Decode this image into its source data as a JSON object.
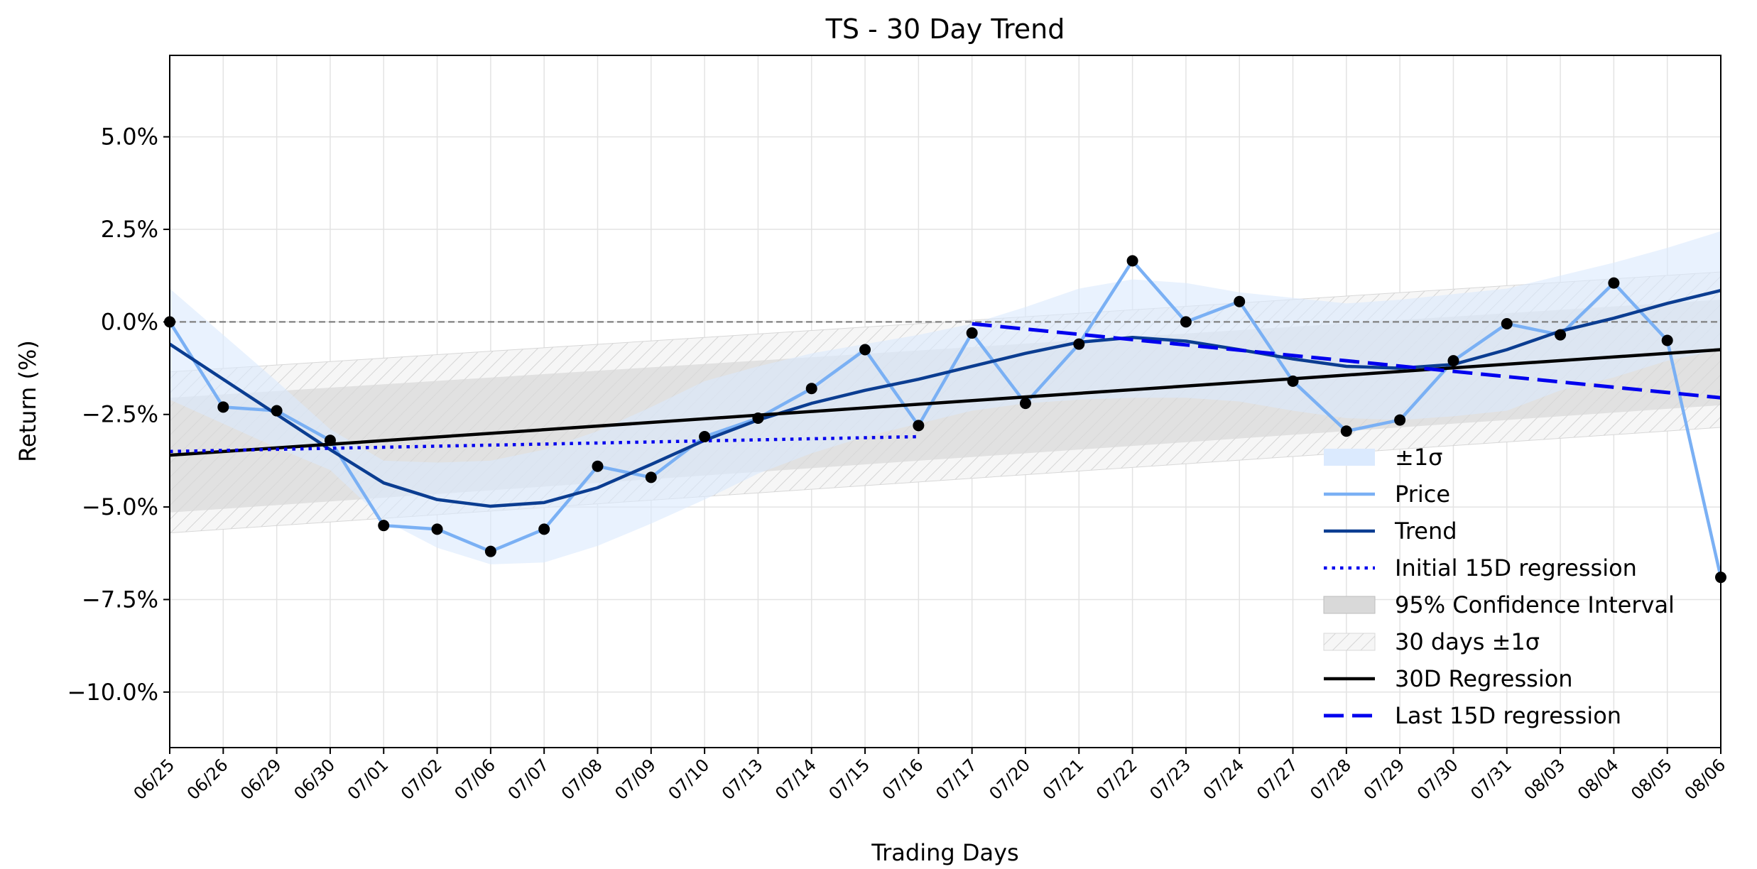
{
  "chart_data": {
    "type": "line",
    "title": "TS - 30 Day Trend",
    "xlabel": "Trading Days",
    "ylabel": "Return (%)",
    "ylim": [
      -11.5,
      7.2
    ],
    "y_ticks": [
      5.0,
      2.5,
      0.0,
      -2.5,
      -5.0,
      -7.5,
      -10.0
    ],
    "y_tick_labels": [
      "5.0%",
      "2.5%",
      "0.0%",
      "−2.5%",
      "−5.0%",
      "−7.5%",
      "−10.0%"
    ],
    "grid": true,
    "legend_position": "lower-right",
    "categories": [
      "06/25",
      "06/26",
      "06/29",
      "06/30",
      "07/01",
      "07/02",
      "07/06",
      "07/07",
      "07/08",
      "07/09",
      "07/10",
      "07/13",
      "07/14",
      "07/15",
      "07/16",
      "07/17",
      "07/20",
      "07/21",
      "07/22",
      "07/23",
      "07/24",
      "07/27",
      "07/28",
      "07/29",
      "07/30",
      "07/31",
      "08/03",
      "08/04",
      "08/05",
      "08/06"
    ],
    "series": [
      {
        "name": "Price",
        "kind": "line",
        "color": "#7ab0f4",
        "values": [
          0.0,
          -2.3,
          -2.4,
          -3.2,
          -5.5,
          -5.6,
          -6.2,
          -5.6,
          -3.9,
          -4.2,
          -3.1,
          -2.6,
          -1.8,
          -0.75,
          -2.8,
          -0.3,
          -2.2,
          -0.6,
          1.65,
          0.0,
          0.55,
          -1.6,
          -2.95,
          -2.65,
          -1.05,
          -0.05,
          -0.35,
          1.05,
          -0.5,
          -6.9
        ]
      },
      {
        "name": "Trend",
        "kind": "line",
        "color": "#0b3d91",
        "values": [
          -0.6,
          -1.55,
          -2.5,
          -3.45,
          -4.35,
          -4.8,
          -4.98,
          -4.88,
          -4.48,
          -3.85,
          -3.2,
          -2.65,
          -2.2,
          -1.85,
          -1.55,
          -1.2,
          -0.85,
          -0.55,
          -0.42,
          -0.52,
          -0.75,
          -1.0,
          -1.2,
          -1.25,
          -1.15,
          -0.75,
          -0.25,
          0.1,
          0.5,
          0.85
        ]
      },
      {
        "name": "Initial 15D regression",
        "kind": "dotted",
        "color": "#0000ee",
        "x_range": [
          0,
          14
        ],
        "y_range": [
          -3.5,
          -3.1
        ]
      },
      {
        "name": "30D Regression",
        "kind": "line",
        "color": "#000000",
        "x_range": [
          0,
          29
        ],
        "y_range": [
          -3.6,
          -0.75
        ]
      },
      {
        "name": "Last 15D regression",
        "kind": "dashed",
        "color": "#0000ee",
        "x_range": [
          15,
          29
        ],
        "y_range": [
          -0.05,
          -2.05
        ]
      },
      {
        "name": "±1σ",
        "kind": "band",
        "color": "#dbeafe",
        "upper": [
          0.9,
          -0.35,
          -1.6,
          -2.9,
          -3.75,
          -3.8,
          -3.75,
          -3.45,
          -2.95,
          -2.3,
          -1.6,
          -1.2,
          -0.85,
          -0.6,
          -0.35,
          -0.05,
          0.4,
          0.9,
          1.15,
          1.05,
          0.8,
          0.65,
          0.5,
          0.6,
          0.75,
          0.9,
          1.25,
          1.6,
          2.0,
          2.45
        ],
        "lower": [
          -2.1,
          -2.75,
          -3.4,
          -4.0,
          -5.35,
          -6.1,
          -6.55,
          -6.5,
          -6.05,
          -5.45,
          -4.8,
          -4.1,
          -3.55,
          -3.1,
          -2.75,
          -2.4,
          -2.2,
          -2.1,
          -2.05,
          -2.05,
          -2.15,
          -2.4,
          -2.6,
          -2.65,
          -2.55,
          -2.4,
          -1.85,
          -1.5,
          -1.05,
          -0.75
        ]
      },
      {
        "name": "95% Confidence Interval",
        "kind": "band",
        "color": "#d9d9d9",
        "upper_range": [
          -2.05,
          0.6
        ],
        "lower_range": [
          -5.15,
          -2.25
        ]
      },
      {
        "name": "30 days ±1σ",
        "kind": "hatched-band",
        "color": "#cccccc",
        "upper_range": [
          -1.35,
          1.35
        ],
        "lower_range": [
          -5.7,
          -2.85
        ]
      }
    ],
    "markers": {
      "color": "#000000",
      "values_from": "Price"
    },
    "zero_line": {
      "y": 0.0,
      "style": "dashed",
      "color": "#808080"
    }
  }
}
